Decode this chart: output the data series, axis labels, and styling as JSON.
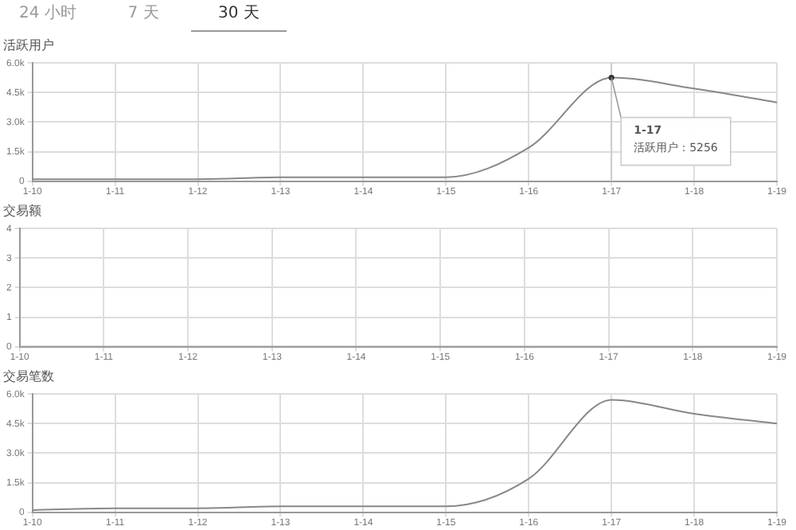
{
  "chart_data": [
    {
      "type": "line",
      "title": "活跃用户",
      "categories": [
        "1-10",
        "1-11",
        "1-12",
        "1-13",
        "1-14",
        "1-15",
        "1-16",
        "1-17",
        "1-18",
        "1-19"
      ],
      "series": [
        {
          "color": "#888888",
          "values": [
            100,
            100,
            100,
            200,
            200,
            200,
            1700,
            5256,
            4700,
            4000
          ]
        }
      ],
      "ylim": [
        0,
        6000
      ],
      "yticks": [
        0,
        {
          "value": 1500,
          "label": "1.5k"
        },
        {
          "value": 3000,
          "label": "3.0k"
        },
        {
          "value": 4500,
          "label": "4.5k"
        },
        {
          "value": 6000,
          "label": "6.0k"
        }
      ],
      "grid": true,
      "legend": false,
      "marker": "none",
      "line_style": "solid",
      "ref_lines": [
        {
          "axis": "x",
          "value": "1-17",
          "color": "#cccccc"
        }
      ],
      "annotations": [
        "24 小时",
        "7 天",
        "30 天",
        {
          "text": "1-17\n活跃用户：5256",
          "x": "1-17",
          "y": 5256
        }
      ]
    },
    {
      "type": "line",
      "title": "交易额",
      "categories": [
        "1-10",
        "1-11",
        "1-12",
        "1-13",
        "1-14",
        "1-15",
        "1-16",
        "1-17",
        "1-18",
        "1-19"
      ],
      "series": [
        {
          "color": "#aaaaaa",
          "values": [
            0,
            0,
            0,
            0,
            0,
            0,
            0,
            0,
            0,
            0
          ]
        }
      ],
      "ylim": [
        0,
        4
      ],
      "yticks": [
        0,
        1,
        2,
        3,
        4
      ],
      "grid": true,
      "legend": false,
      "marker": "none",
      "line_style": "solid"
    },
    {
      "type": "line",
      "title": "交易笔数",
      "categories": [
        "1-10",
        "1-11",
        "1-12",
        "1-13",
        "1-14",
        "1-15",
        "1-16",
        "1-17",
        "1-18",
        "1-19"
      ],
      "series": [
        {
          "color": "#888888",
          "values": [
            100,
            200,
            200,
            300,
            300,
            300,
            1700,
            5700,
            5000,
            4500
          ]
        }
      ],
      "ylim": [
        0,
        6000
      ],
      "yticks": [
        0,
        {
          "value": 1500,
          "label": "1.5k"
        },
        {
          "value": 3000,
          "label": "3.0k"
        },
        {
          "value": 4500,
          "label": "4.5k"
        },
        {
          "value": 6000,
          "label": "6.0k"
        }
      ],
      "grid": true,
      "legend": false,
      "marker": "none",
      "line_style": "solid"
    }
  ]
}
